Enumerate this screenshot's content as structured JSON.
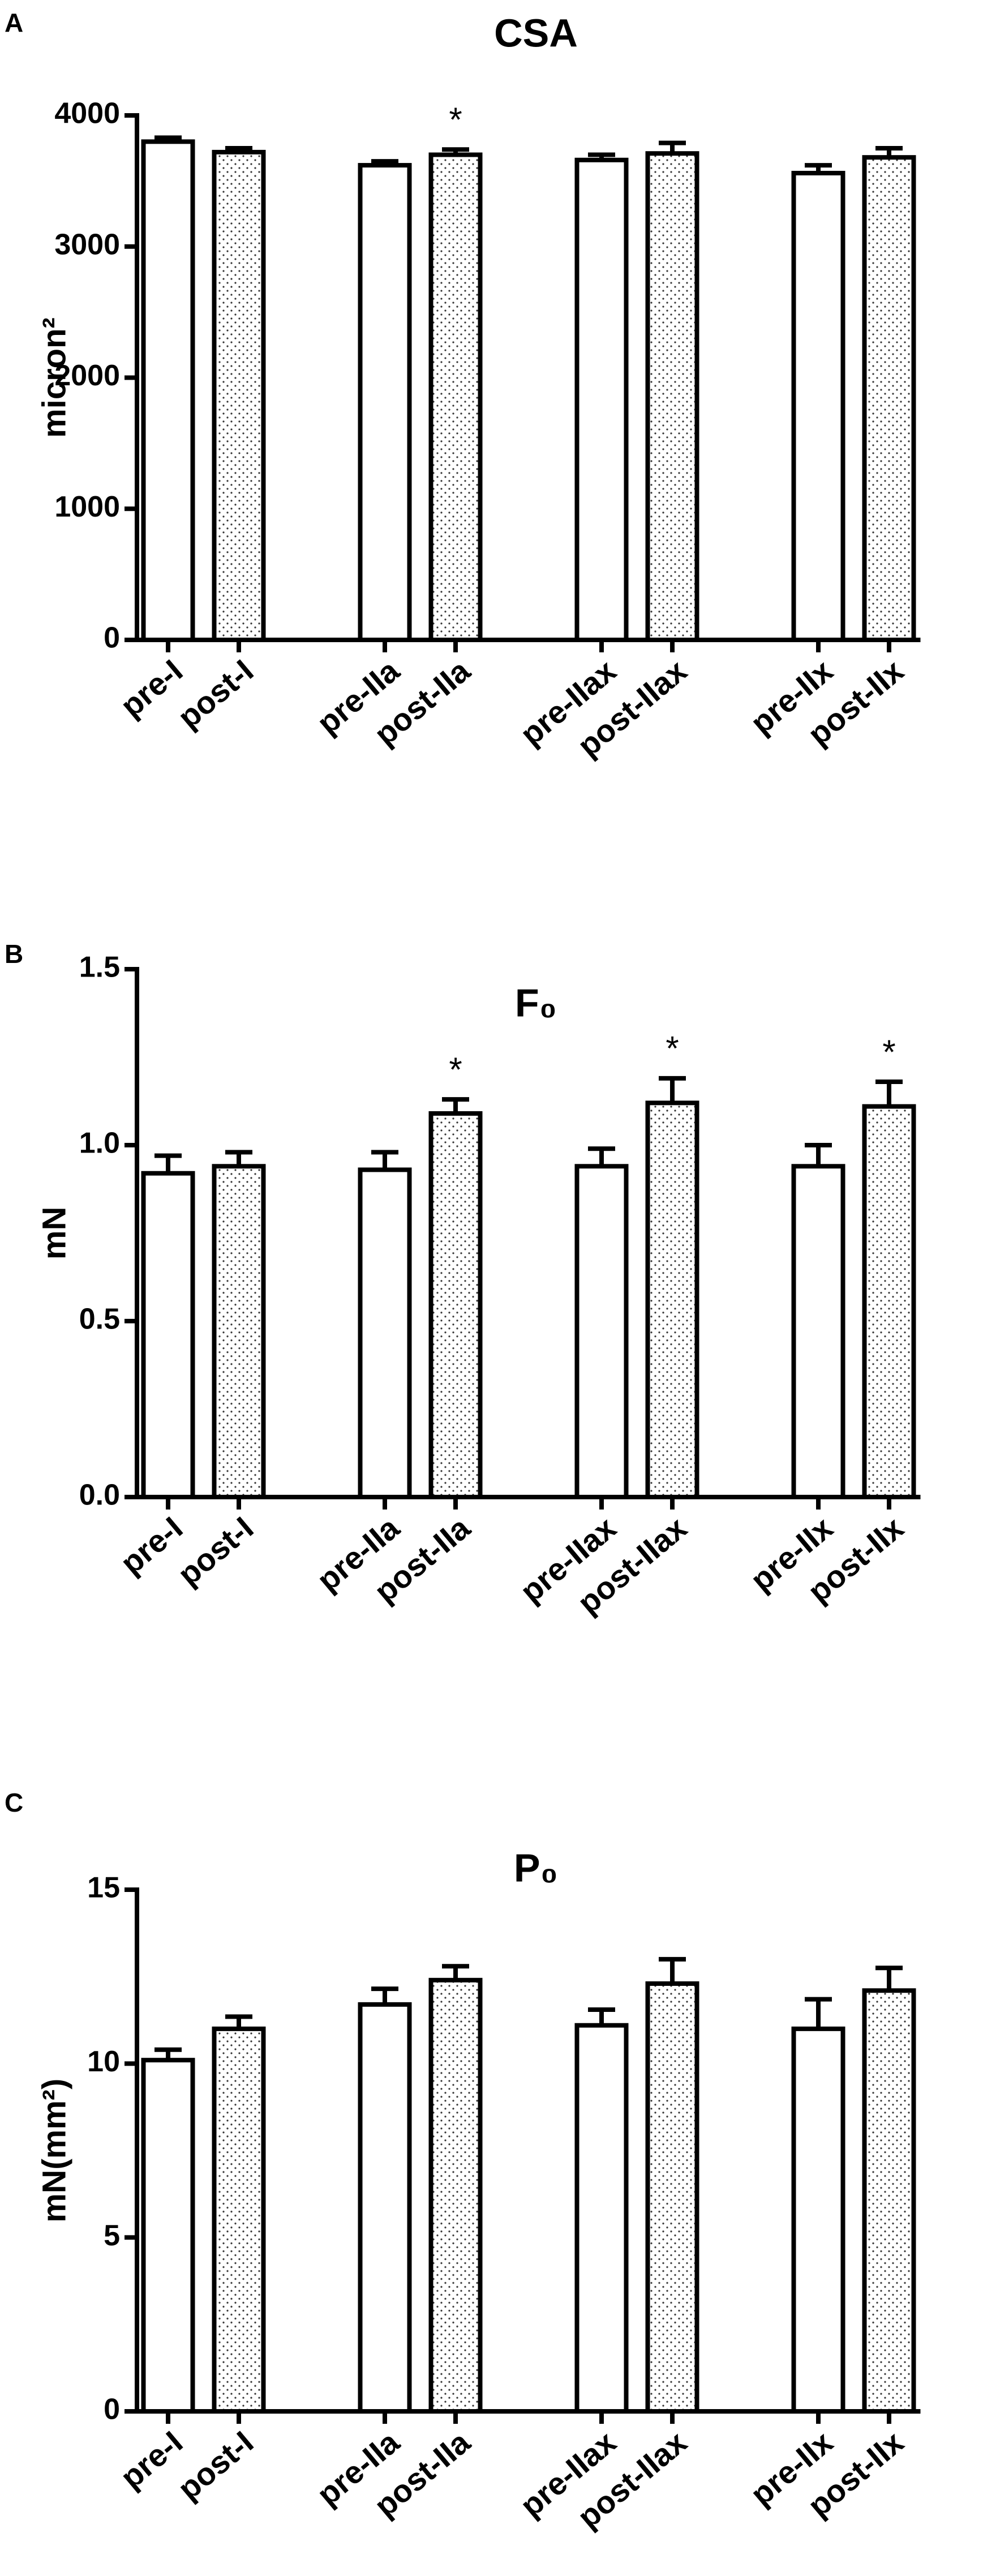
{
  "chart_data": [
    {
      "type": "bar",
      "panel": "A",
      "title": "CSA",
      "y_label": "micron²",
      "categories": [
        "pre-I",
        "post-I",
        "pre-IIa",
        "post-IIa",
        "pre-IIax",
        "post-IIax",
        "pre-IIx",
        "post-IIx"
      ],
      "values": [
        3800,
        3720,
        3620,
        3700,
        3660,
        3710,
        3560,
        3680
      ],
      "errors": [
        30,
        30,
        30,
        40,
        40,
        80,
        60,
        70
      ],
      "markers": [
        null,
        null,
        null,
        "*",
        null,
        null,
        null,
        null
      ],
      "fills": [
        "none",
        "dots",
        "none",
        "dots",
        "none",
        "dots",
        "none",
        "dots"
      ],
      "ylim": [
        0,
        4000
      ],
      "yticks": [
        0,
        1000,
        2000,
        3000,
        4000
      ]
    },
    {
      "type": "bar",
      "panel": "B",
      "title": "F₀",
      "y_label": "mN",
      "categories": [
        "pre-I",
        "post-I",
        "pre-IIa",
        "post-IIa",
        "pre-IIax",
        "post-IIax",
        "pre-IIx",
        "post-IIx"
      ],
      "values": [
        0.92,
        0.94,
        0.93,
        1.09,
        0.94,
        1.12,
        0.94,
        1.11
      ],
      "errors": [
        0.05,
        0.04,
        0.05,
        0.04,
        0.05,
        0.07,
        0.06,
        0.07
      ],
      "markers": [
        null,
        null,
        null,
        "*",
        null,
        "*",
        null,
        "*"
      ],
      "fills": [
        "none",
        "dots",
        "none",
        "dots",
        "none",
        "dots",
        "none",
        "dots"
      ],
      "ylim": [
        0,
        1.5
      ],
      "yticks": [
        {
          "value": 0,
          "label": "0.0"
        },
        0.5,
        {
          "value": 1,
          "label": "1.0"
        },
        1.5
      ]
    },
    {
      "type": "bar",
      "panel": "C",
      "title": "P₀",
      "y_label": "mN(mm²)",
      "categories": [
        "pre-I",
        "post-I",
        "pre-IIa",
        "post-IIa",
        "pre-IIax",
        "post-IIax",
        "pre-IIx",
        "post-IIx"
      ],
      "values": [
        10.1,
        11.0,
        11.7,
        12.4,
        11.1,
        12.3,
        11.0,
        12.1
      ],
      "errors": [
        0.3,
        0.35,
        0.45,
        0.4,
        0.45,
        0.7,
        0.85,
        0.65
      ],
      "markers": [
        null,
        null,
        null,
        null,
        null,
        null,
        null,
        null
      ],
      "fills": [
        "none",
        "dots",
        "none",
        "dots",
        "none",
        "dots",
        "none",
        "dots"
      ],
      "ylim": [
        0,
        15
      ],
      "yticks": [
        0,
        5,
        10,
        15
      ]
    }
  ]
}
